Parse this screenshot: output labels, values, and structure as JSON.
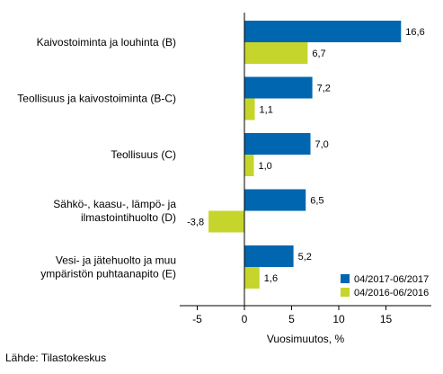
{
  "chart_data": {
    "type": "bar",
    "orientation": "horizontal",
    "categories": [
      [
        "Kaivostoiminta ja louhinta (B)"
      ],
      [
        "Teollisuus ja kaivostoiminta (B-C)"
      ],
      [
        "Teollisuus (C)"
      ],
      [
        "Sähkö-, kaasu-, lämpö- ja",
        "ilmastointihuolto (D)"
      ],
      [
        "Vesi- ja jätehuolto ja muu",
        "ympäristön puhtaanapito (E)"
      ]
    ],
    "series": [
      {
        "name": "04/2017-06/2017",
        "color": "#0066b0",
        "values": [
          16.6,
          7.2,
          7.0,
          6.5,
          5.2
        ],
        "labels": [
          "16,6",
          "7,2",
          "7,0",
          "6,5",
          "5,2"
        ]
      },
      {
        "name": "04/2016-06/2016",
        "color": "#c6d52b",
        "values": [
          6.7,
          1.1,
          1.0,
          -3.8,
          1.6
        ],
        "labels": [
          "6,7",
          "1,1",
          "1,0",
          "-3,8",
          "1,6"
        ]
      }
    ],
    "xlabel": "Vuosimuutos, %",
    "xlim": [
      -7,
      19.5
    ],
    "xticks": [
      -5,
      0,
      5,
      10,
      15
    ],
    "xtick_labels": [
      "-5",
      "0",
      "5",
      "10",
      "15"
    ],
    "legend_position": "bottom-right",
    "grid": false
  },
  "footer": {
    "source": "Lähde: Tilastokeskus"
  }
}
